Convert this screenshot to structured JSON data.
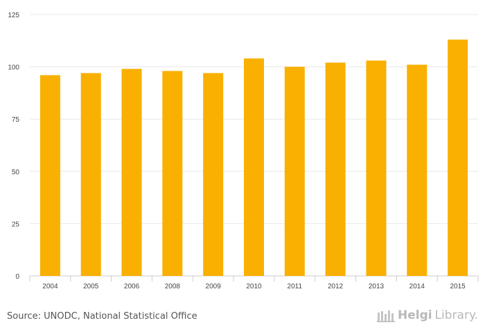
{
  "chart_data": {
    "type": "bar",
    "categories": [
      "2004",
      "2005",
      "2006",
      "2008",
      "2009",
      "2010",
      "2011",
      "2012",
      "2013",
      "2014",
      "2015"
    ],
    "values": [
      96,
      97,
      99,
      98,
      97,
      104,
      100,
      102,
      103,
      101,
      113
    ],
    "ylim": [
      0,
      125
    ],
    "yticks": [
      0,
      25,
      50,
      75,
      100,
      125
    ],
    "title": "",
    "xlabel": "",
    "ylabel": "",
    "bar_color": "#f9b000",
    "grid": true,
    "gridline_color": "#e8e8e8"
  },
  "footer": {
    "source": "Source: UNODC, National Statistical Office",
    "brand_helgi": "Helgi",
    "brand_library": "Library."
  }
}
